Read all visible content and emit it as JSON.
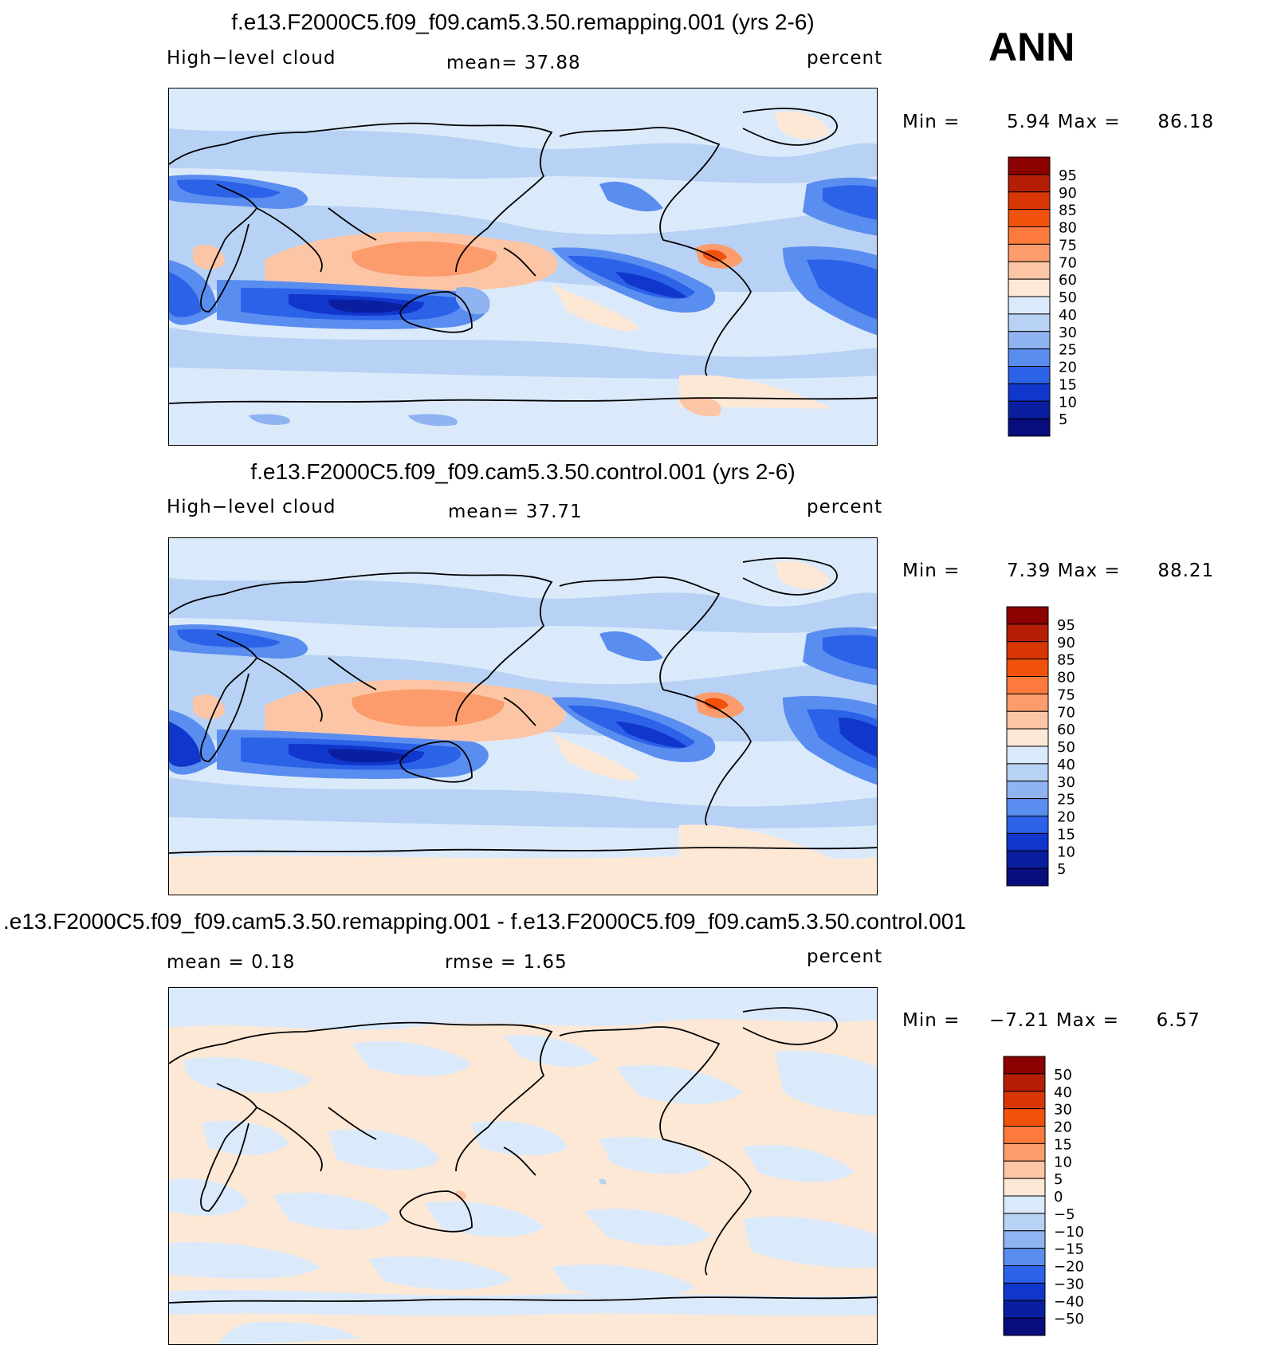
{
  "season": "ANN",
  "units": "percent",
  "panels": [
    {
      "id": "remapping",
      "title": "f.e13.F2000C5.f09_f09.cam5.3.50.remapping.001 (yrs 2-6)",
      "left_label": "High−level cloud",
      "mid_label": "mean=   37.88",
      "right_label": "percent",
      "min_label": "Min =",
      "min_value": "5.94",
      "max_label": "Max =",
      "max_value": "86.18",
      "colorbar": {
        "ticks": [
          "95",
          "90",
          "85",
          "80",
          "75",
          "70",
          "60",
          "50",
          "40",
          "30",
          "25",
          "20",
          "15",
          "10",
          "5"
        ],
        "colors": [
          "#8b0000",
          "#b51e05",
          "#d93606",
          "#f0520e",
          "#fb7a3c",
          "#fc9c6c",
          "#fcc6a6",
          "#fde8d6",
          "#dbeafa",
          "#b8d2f5",
          "#8fb4f1",
          "#5a8df0",
          "#2c62e8",
          "#1036cc",
          "#0a1fa0",
          "#070d7a"
        ]
      }
    },
    {
      "id": "control",
      "title": "f.e13.F2000C5.f09_f09.cam5.3.50.control.001 (yrs 2-6)",
      "left_label": "High−level cloud",
      "mid_label": "mean=   37.71",
      "right_label": "percent",
      "min_label": "Min =",
      "min_value": "7.39",
      "max_label": "Max =",
      "max_value": "88.21",
      "colorbar": {
        "ticks": [
          "95",
          "90",
          "85",
          "80",
          "75",
          "70",
          "60",
          "50",
          "40",
          "30",
          "25",
          "20",
          "15",
          "10",
          "5"
        ],
        "colors": [
          "#8b0000",
          "#b51e05",
          "#d93606",
          "#f0520e",
          "#fb7a3c",
          "#fc9c6c",
          "#fcc6a6",
          "#fde8d6",
          "#dbeafa",
          "#b8d2f5",
          "#8fb4f1",
          "#5a8df0",
          "#2c62e8",
          "#1036cc",
          "#0a1fa0",
          "#070d7a"
        ]
      }
    },
    {
      "id": "difference",
      "title": ".e13.F2000C5.f09_f09.cam5.3.50.remapping.001 - f.e13.F2000C5.f09_f09.cam5.3.50.control.001",
      "left_label": "mean =     0.18",
      "mid_label": "rmse =     1.65",
      "right_label": "percent",
      "min_label": "Min =",
      "min_value": "−7.21",
      "max_label": "Max =",
      "max_value": "6.57",
      "colorbar": {
        "ticks": [
          "50",
          "40",
          "30",
          "20",
          "15",
          "10",
          "5",
          "0",
          "−5",
          "−10",
          "−15",
          "−20",
          "−30",
          "−40",
          "−50"
        ],
        "colors": [
          "#8b0000",
          "#b51e05",
          "#d93606",
          "#f0520e",
          "#fb7a3c",
          "#fc9c6c",
          "#fcc6a6",
          "#fde8d6",
          "#dbeafa",
          "#b8d2f5",
          "#8fb4f1",
          "#5a8df0",
          "#2c62e8",
          "#1036cc",
          "#0a1fa0",
          "#070d7a"
        ]
      }
    }
  ]
}
